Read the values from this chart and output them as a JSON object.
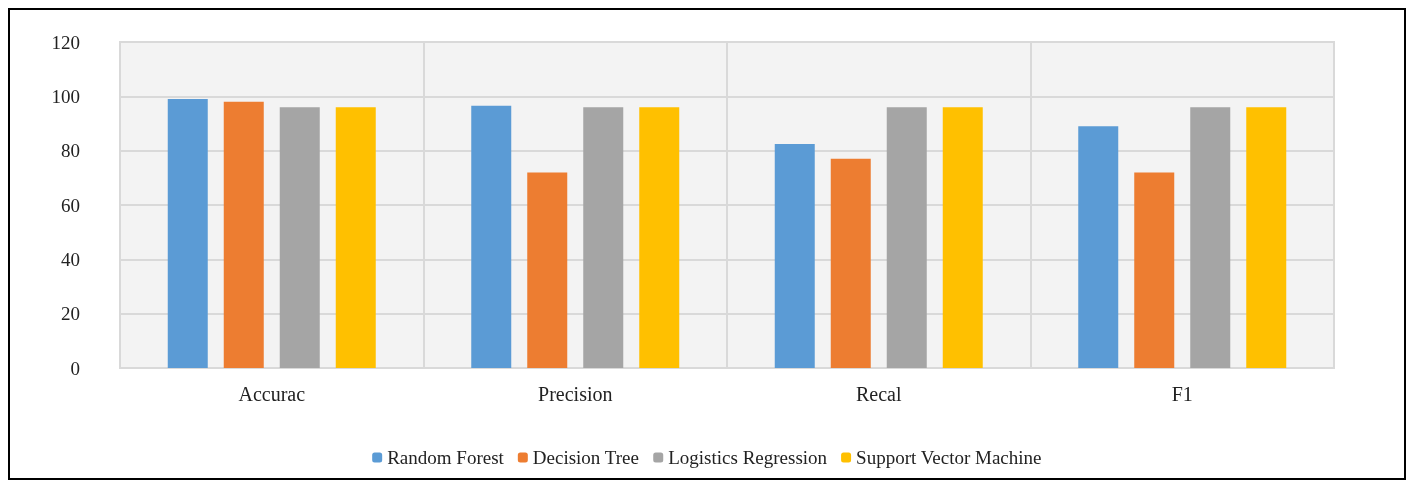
{
  "chart_data": {
    "type": "bar",
    "categories": [
      "Accurac",
      "Precision",
      "Recal",
      "F1"
    ],
    "series": [
      {
        "name": "Random Forest",
        "color": "#5b9bd5",
        "values": [
          99,
          96.5,
          82.5,
          89
        ]
      },
      {
        "name": "Decision Tree",
        "color": "#ed7d31",
        "values": [
          98,
          72,
          77,
          72
        ]
      },
      {
        "name": "Logistics Regression",
        "color": "#a5a5a5",
        "values": [
          96,
          96,
          96,
          96
        ]
      },
      {
        "name": "Support Vector Machine",
        "color": "#ffc000",
        "values": [
          96,
          96,
          96,
          96
        ]
      }
    ],
    "ylim": [
      0,
      120
    ],
    "yticks": [
      0,
      20,
      40,
      60,
      80,
      100,
      120
    ],
    "grid": true,
    "legend": "bottom"
  }
}
